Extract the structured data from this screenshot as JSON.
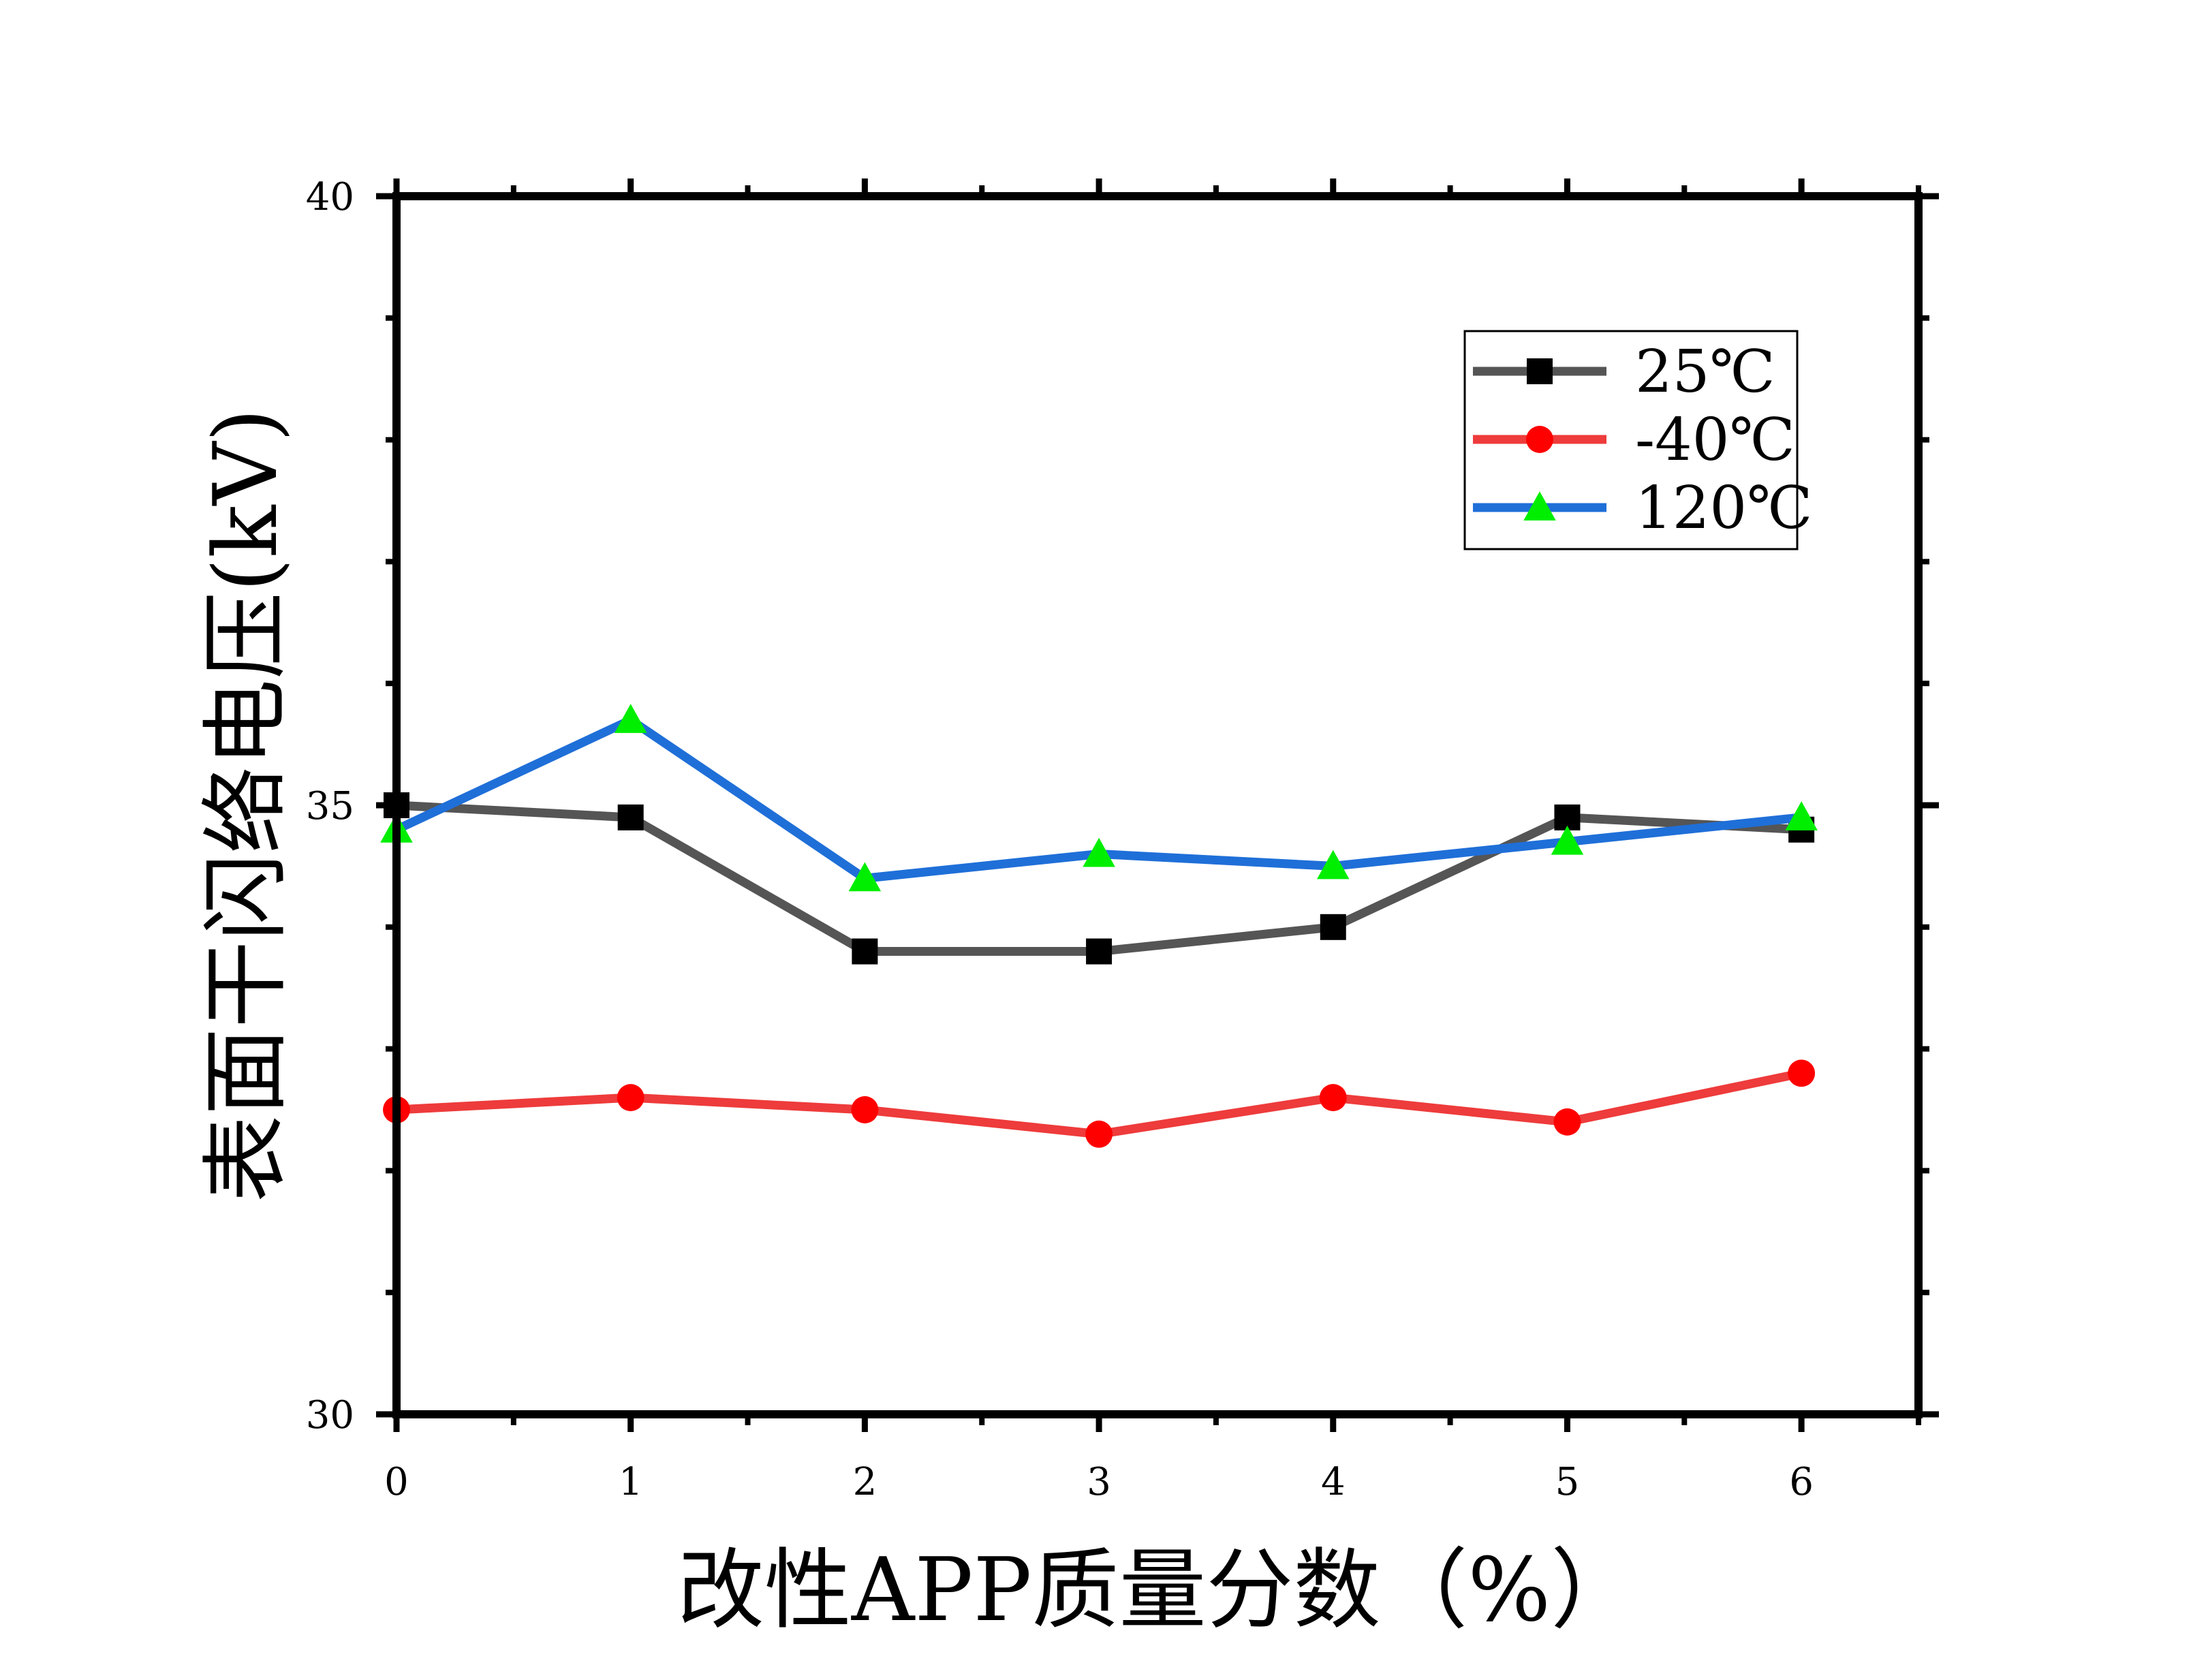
{
  "chart_data": {
    "type": "line",
    "xlabel": "改性APP质量分数（%）",
    "ylabel": "表面干闪络电压(kV)",
    "x": [
      0,
      1,
      2,
      3,
      4,
      5,
      6
    ],
    "xlim": [
      0,
      6.5
    ],
    "ylim": [
      30,
      40
    ],
    "x_ticks": [
      0,
      1,
      2,
      3,
      4,
      5,
      6
    ],
    "x_tick_labels": [
      "0",
      "1",
      "2",
      "3",
      "4",
      "5",
      "6"
    ],
    "y_ticks": [
      30,
      35,
      40
    ],
    "y_tick_labels": [
      "30",
      "35",
      "40"
    ],
    "grid": false,
    "legend_position": "top-right",
    "series": [
      {
        "name": "25℃",
        "values": [
          35.0,
          34.9,
          33.8,
          33.8,
          34.0,
          34.9,
          34.8
        ],
        "color": "#555555",
        "marker": "square",
        "marker_color": "#000000"
      },
      {
        "name": "-40℃",
        "values": [
          32.5,
          32.6,
          32.5,
          32.3,
          32.6,
          32.4,
          32.8
        ],
        "color": "#ee3b3b",
        "marker": "circle",
        "marker_color": "#ff0000"
      },
      {
        "name": "120℃",
        "values": [
          34.8,
          35.7,
          34.4,
          34.6,
          34.5,
          34.7,
          34.9
        ],
        "color": "#1f6fd8",
        "marker": "triangle",
        "marker_color": "#00ee00"
      }
    ]
  }
}
